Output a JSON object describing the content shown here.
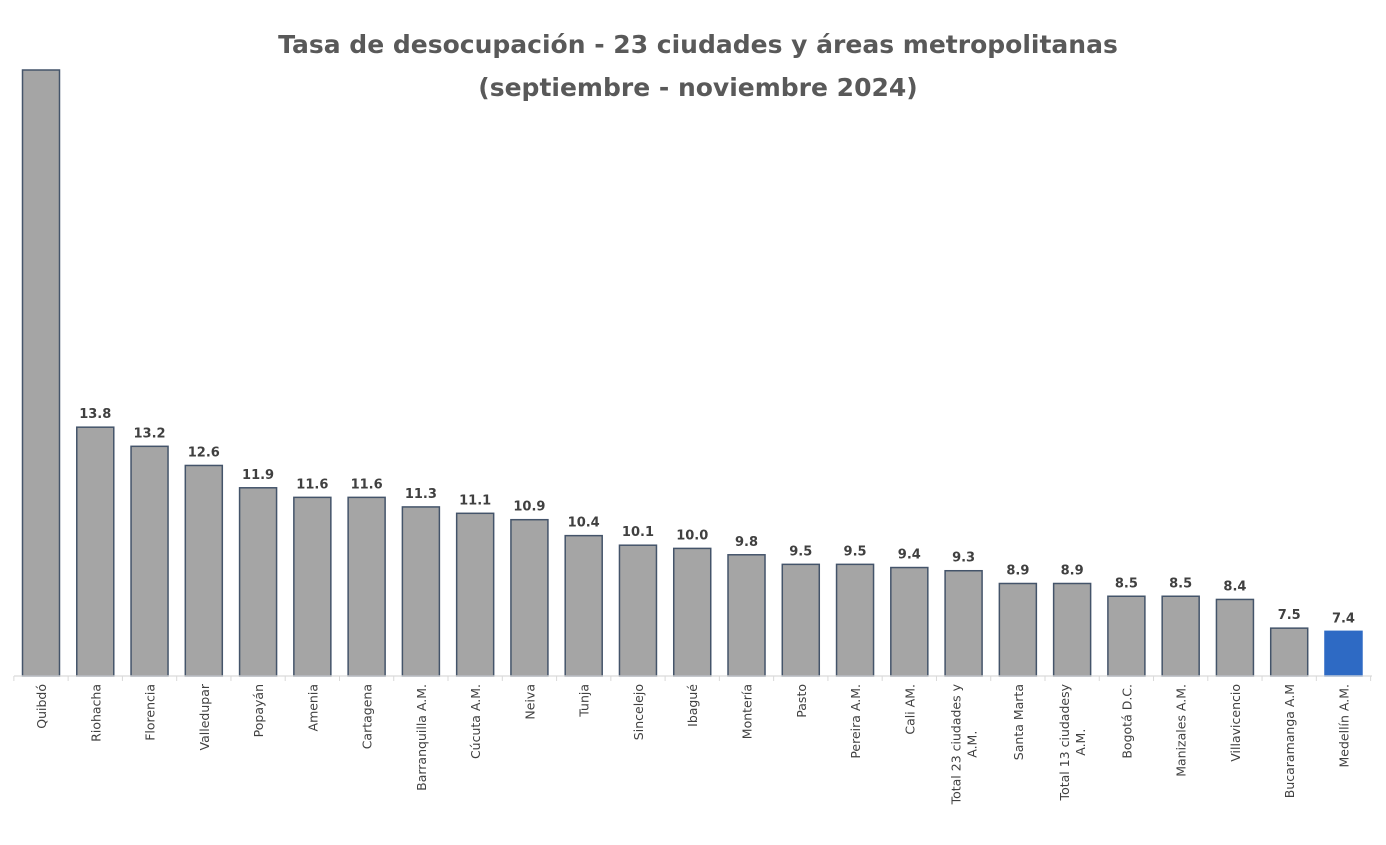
{
  "chart_data": {
    "type": "bar",
    "title": "Tasa de desocupación - 23 ciudades y áreas metropolitanas",
    "subtitle": "(septiembre - noviembre 2024)",
    "xlabel": "",
    "ylabel": "",
    "ylim": [
      6,
      25
    ],
    "grid": false,
    "categories": [
      "Quibdó",
      "Riohacha",
      "Florencia",
      "Valledupar",
      "Popayán",
      "Amenia",
      "Cartagena",
      "Barranquilla A.M.",
      "Cúcuta A.M.",
      "Neiva",
      "Tunja",
      "Sincelejo",
      "Ibagué",
      "Montería",
      "Pasto",
      "Pereira A.M.",
      "Cali AM.",
      "Total 23 ciudades y\nA.M.",
      "Santa Marta",
      "Total 13 ciudadesy\nA.M.",
      "Bogotá D.C.",
      "Manizales A.M.",
      "Villavicencio",
      "Bucaramanga A.M",
      "Medellín A.M."
    ],
    "values": [
      null,
      13.8,
      13.2,
      12.6,
      11.9,
      11.6,
      11.6,
      11.3,
      11.1,
      10.9,
      10.4,
      10.1,
      10.0,
      9.8,
      9.5,
      9.5,
      9.4,
      9.3,
      8.9,
      8.9,
      8.5,
      8.5,
      8.4,
      7.5,
      7.4
    ],
    "data_labels": [
      "",
      "13.8",
      "13.2",
      "12.6",
      "11.9",
      "11.6",
      "11.6",
      "11.3",
      "11.1",
      "10.9",
      "10.4",
      "10.1",
      "10.0",
      "9.8",
      "9.5",
      "9.5",
      "9.4",
      "9.3",
      "8.9",
      "8.9",
      "8.5",
      "8.5",
      "8.4",
      "7.5",
      "7.4"
    ],
    "highlight": "Medellín A.M.",
    "colors": {
      "bar": "#a5a5a5",
      "bar_border": "#44546a",
      "highlight": "#2e6ac4",
      "text": "#595959",
      "axis": "#d9d9d9"
    }
  }
}
